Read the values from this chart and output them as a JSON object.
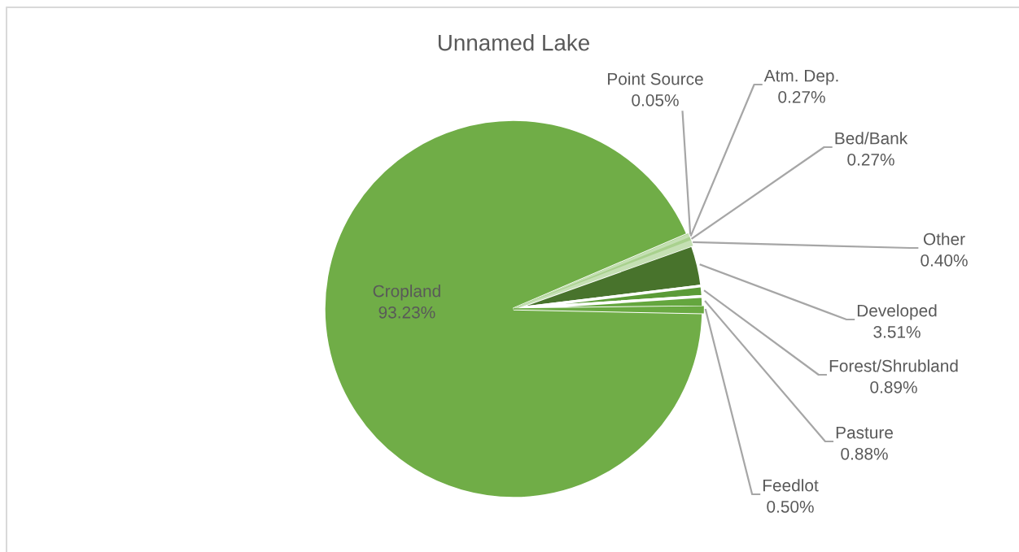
{
  "chart_data": {
    "type": "pie",
    "title": "Unnamed Lake",
    "categories": [
      "Point Source",
      "Atm. Dep.",
      "Bed/Bank",
      "Other",
      "Developed",
      "Forest/Shrubland",
      "Pasture",
      "Feedlot",
      "Cropland"
    ],
    "values": [
      0.05,
      0.27,
      0.27,
      0.4,
      3.51,
      0.89,
      0.88,
      0.5,
      93.23
    ],
    "value_labels": [
      "0.05%",
      "0.27%",
      "0.27%",
      "0.40%",
      "3.51%",
      "0.89%",
      "0.88%",
      "0.50%",
      "93.23%"
    ],
    "colors": [
      "#a9d18e",
      "#c5e0b4",
      "#a9d18e",
      "#c5e0b4",
      "#48732c",
      "#5b9b37",
      "#64a63e",
      "#6aaa42",
      "#70ad47"
    ]
  }
}
